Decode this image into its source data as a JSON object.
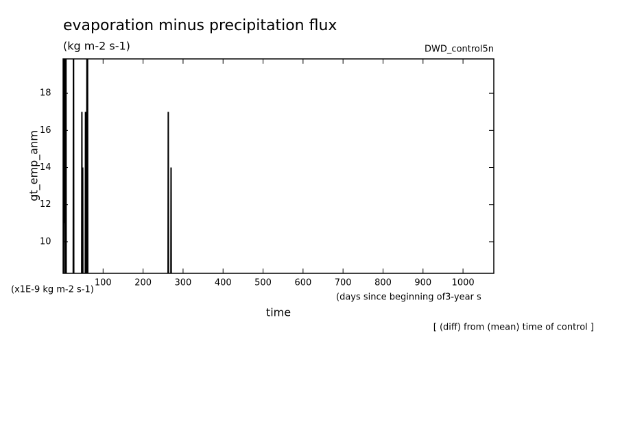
{
  "chart_data": {
    "type": "line",
    "title": "evaporation minus precipitation flux",
    "subtitle": "(kg m-2 s-1)",
    "run_label": "DWD_control5n",
    "y_label": "gt_emp_anm",
    "y_unit_label": "(x1E-9 kg m-2 s-1)",
    "x_label": "time",
    "x_unit_label": "(days since beginning of3-year s",
    "footnote": "[ (diff) from (mean) time of control ]",
    "x": [
      0,
      1,
      2,
      3,
      5,
      6,
      7,
      8,
      25,
      26,
      27,
      46,
      47,
      48,
      49,
      50,
      55,
      56,
      57,
      58,
      60,
      61,
      62,
      262,
      263,
      264,
      269,
      270,
      271
    ],
    "series": [
      {
        "name": "gt_emp_anm",
        "color": "#000000",
        "values": [
          0,
          25,
          11,
          25,
          0,
          17,
          25,
          0,
          0,
          25,
          0,
          0,
          17,
          0,
          14,
          0,
          0,
          17,
          11,
          0,
          25,
          25,
          0,
          0,
          17,
          0,
          0,
          14,
          0
        ]
      }
    ],
    "xlim": [
      0,
      1077
    ],
    "ylim": [
      8.3,
      19.85
    ],
    "xticks": [
      100,
      200,
      300,
      400,
      500,
      600,
      700,
      800,
      900,
      1000
    ],
    "yticks": [
      10,
      12,
      14,
      16,
      18
    ]
  }
}
